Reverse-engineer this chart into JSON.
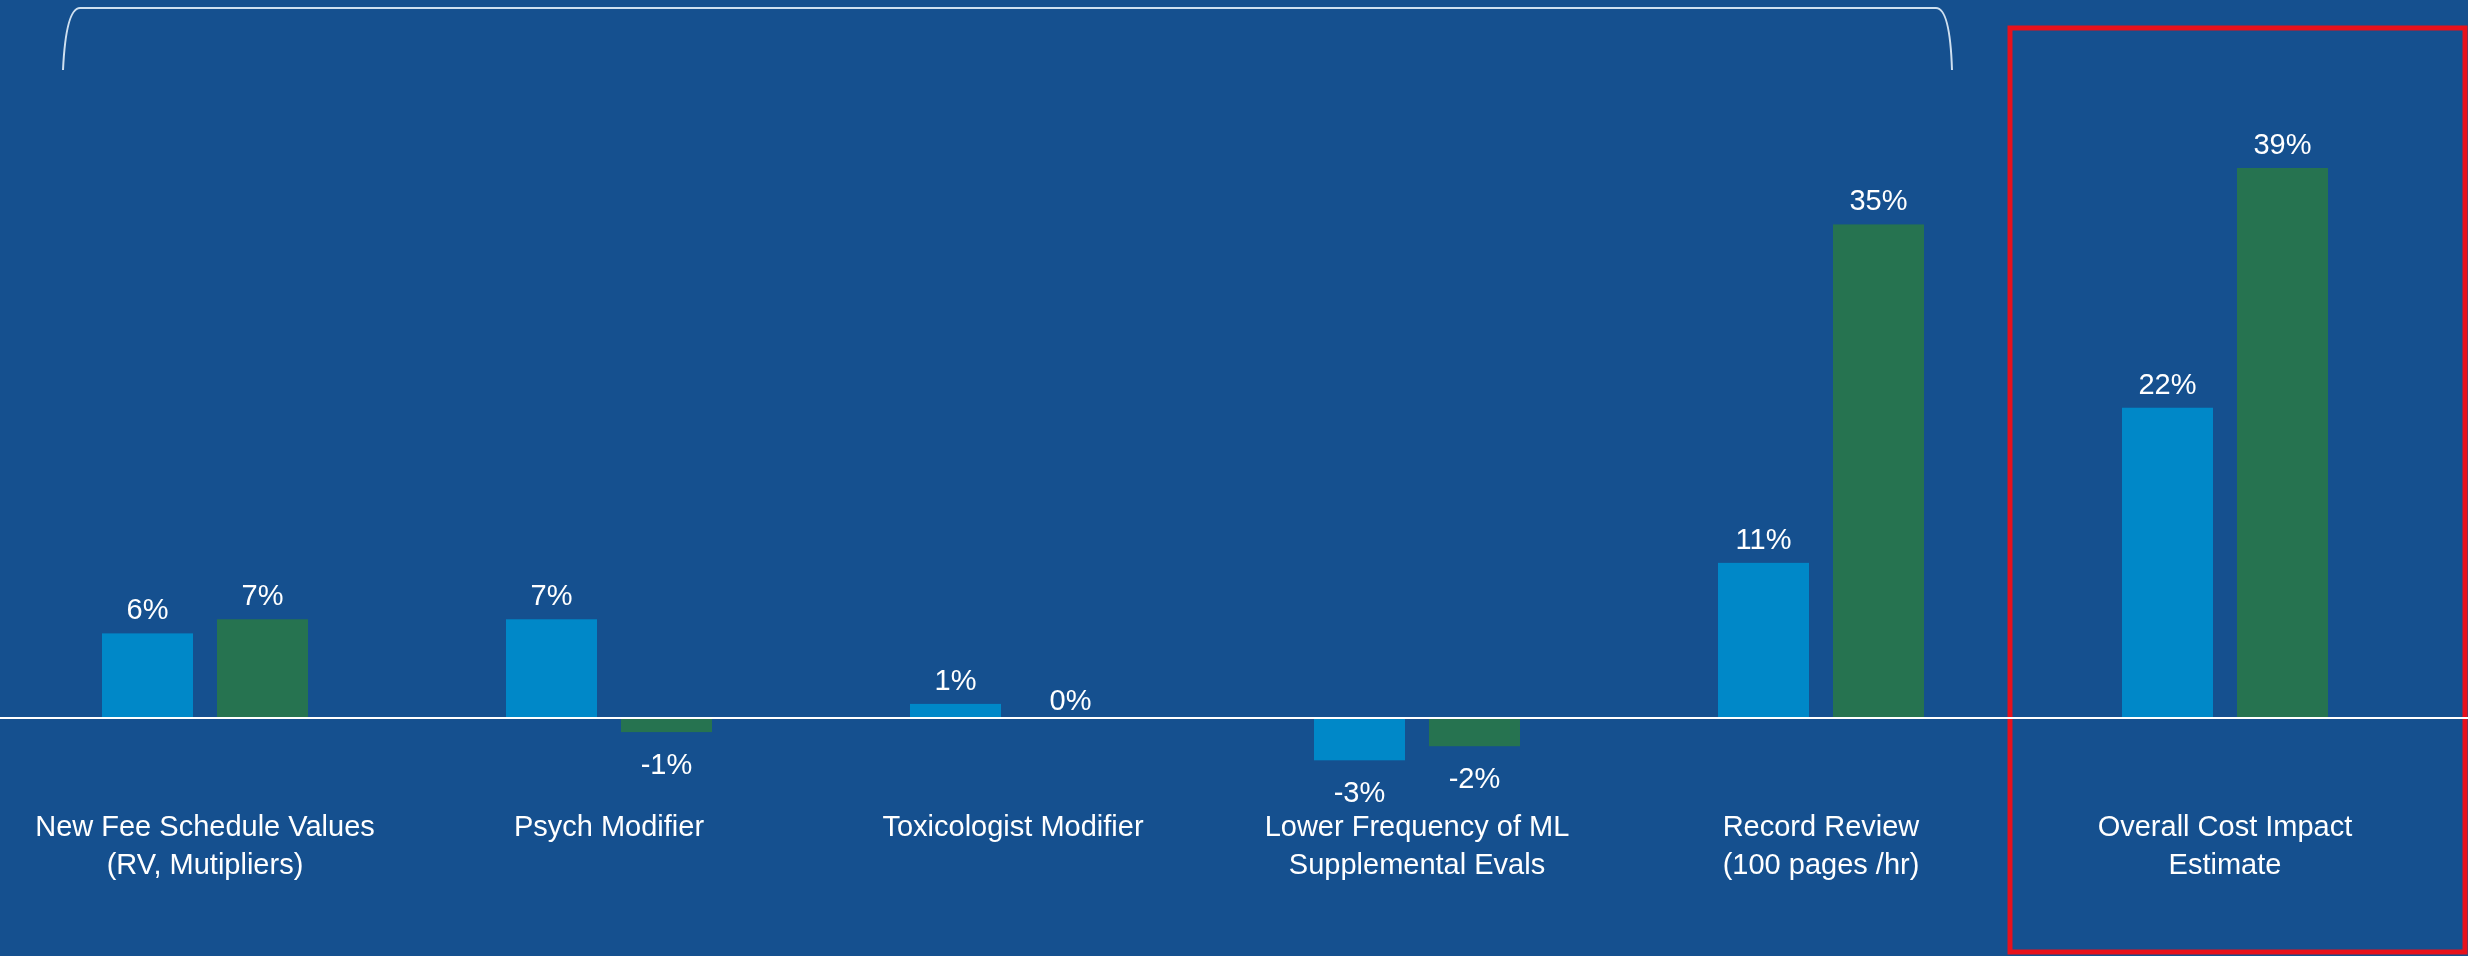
{
  "chart_data": {
    "type": "bar",
    "categories": [
      "New Fee Schedule Values\n(RV, Mutipliers)",
      "Psych Modifier",
      "Toxicologist Modifier",
      "Lower Frequency of ML\nSupplemental Evals",
      "Record Review\n(100 pages /hr)",
      "Overall Cost Impact\nEstimate"
    ],
    "series": [
      {
        "color": "#0088c8",
        "values": [
          6,
          7,
          1,
          -3,
          11,
          22
        ],
        "value_labels": [
          "6%",
          "7%",
          "1%",
          "-3%",
          "11%",
          "22%"
        ]
      },
      {
        "color": "#267350",
        "values": [
          7,
          -1,
          0,
          -2,
          35,
          39
        ],
        "value_labels": [
          "7%",
          "-1%",
          "0%",
          "-2%",
          "35%",
          "39%"
        ]
      }
    ],
    "tick_labels": "x"
  }
}
